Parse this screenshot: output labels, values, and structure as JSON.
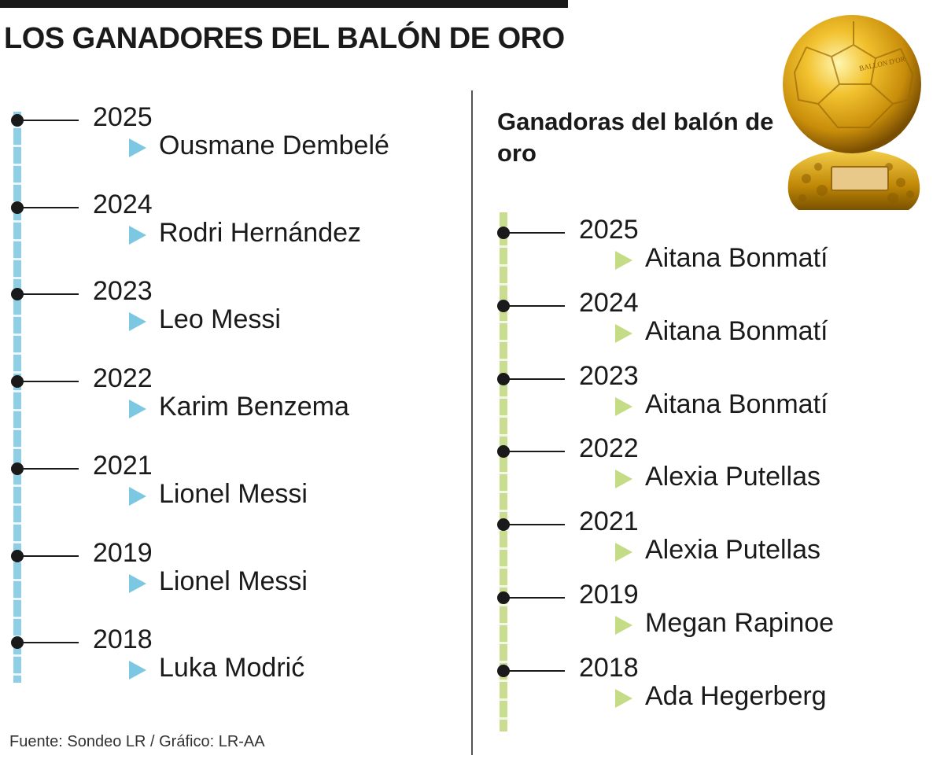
{
  "title": "LOS GANADORES DEL BALÓN DE ORO",
  "women_title": "Ganadoras del balón de oro",
  "men": [
    {
      "year": "2025",
      "winner": "Ousmane Dembelé"
    },
    {
      "year": "2024",
      "winner": "Rodri Hernández"
    },
    {
      "year": "2023",
      "winner": "Leo Messi"
    },
    {
      "year": "2022",
      "winner": "Karim Benzema"
    },
    {
      "year": "2021",
      "winner": "Lionel Messi"
    },
    {
      "year": "2019",
      "winner": "Lionel Messi"
    },
    {
      "year": "2018",
      "winner": "Luka Modrić"
    }
  ],
  "women": [
    {
      "year": "2025",
      "winner": "Aitana Bonmatí"
    },
    {
      "year": "2024",
      "winner": "Aitana Bonmatí"
    },
    {
      "year": "2023",
      "winner": "Aitana Bonmatí"
    },
    {
      "year": "2022",
      "winner": "Alexia Putellas"
    },
    {
      "year": "2021",
      "winner": "Alexia Putellas"
    },
    {
      "year": "2019",
      "winner": "Megan Rapinoe"
    },
    {
      "year": "2018",
      "winner": "Ada Hegerberg"
    }
  ],
  "trophy": {
    "icon": "ballon-dor-trophy-icon",
    "engraving": "BALLON D'OR"
  },
  "colors": {
    "men_accent": "#8ecfe6",
    "women_accent": "#c8dd90",
    "gold": "#d4a017"
  },
  "footer": "Fuente: Sondeo LR / Gráfico: LR-AA"
}
